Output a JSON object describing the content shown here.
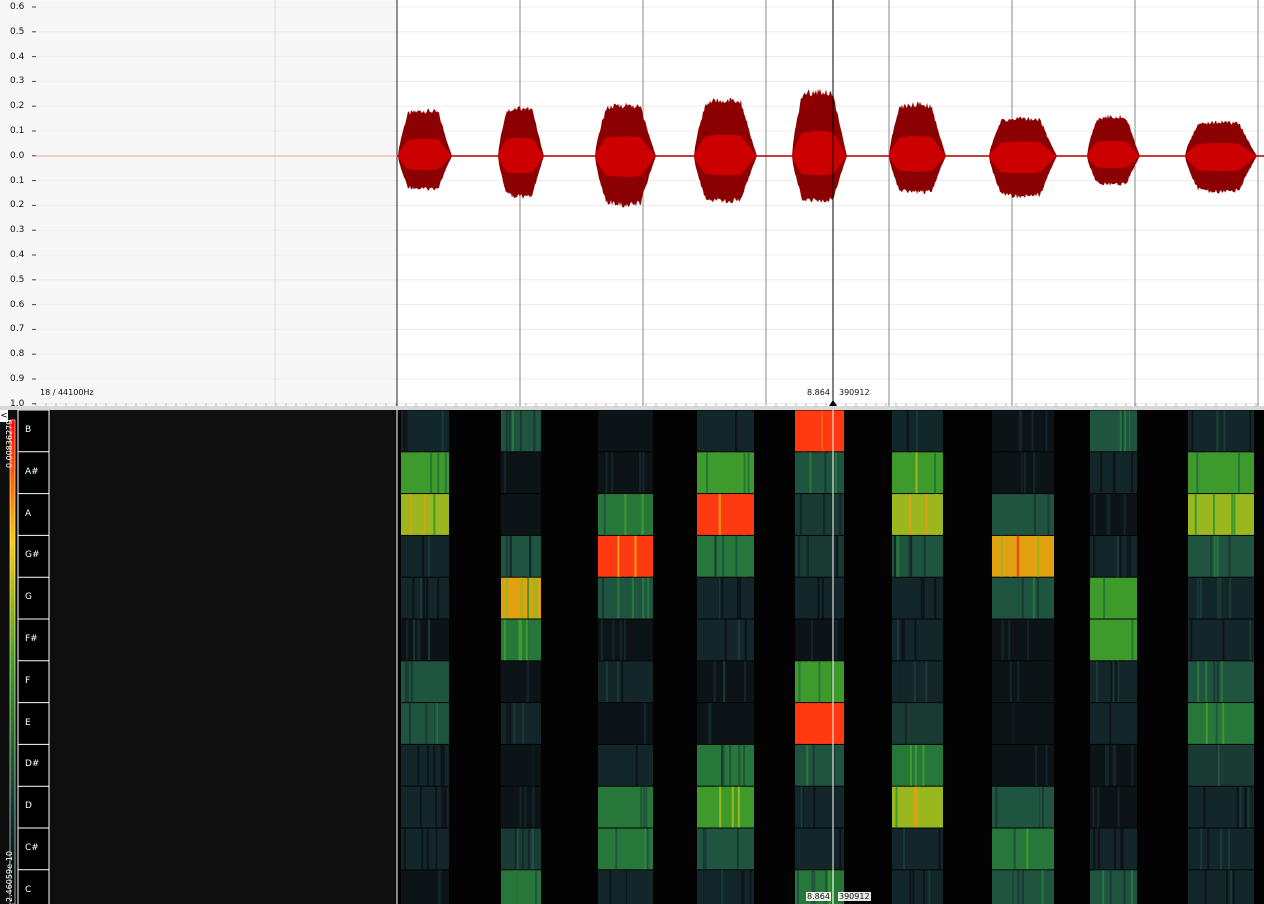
{
  "waveform": {
    "y_axis_labels": [
      "0.6",
      "0.5",
      "0.4",
      "0.3",
      "0.2",
      "0.1",
      "0.0",
      "0.1",
      "0.2",
      "0.3",
      "0.4",
      "0.5",
      "0.6",
      "0.7",
      "0.8",
      "0.9",
      "1.0"
    ],
    "sample_rate_label": "18 / 44100Hz",
    "cursor_time": "8.864",
    "cursor_sample": "390912",
    "wave_color": "#cc0000",
    "wave_dark_color": "#8b0000"
  },
  "chromagram": {
    "notes": [
      "B",
      "A#",
      "A",
      "G#",
      "G",
      "F#",
      "F",
      "E",
      "D#",
      "D",
      "C#",
      "C"
    ],
    "scale_max": "0.00836279",
    "scale_min": "2.46059e-10",
    "cursor_time": "8.864",
    "cursor_sample": "390912",
    "collapse_glyph": "<"
  }
}
